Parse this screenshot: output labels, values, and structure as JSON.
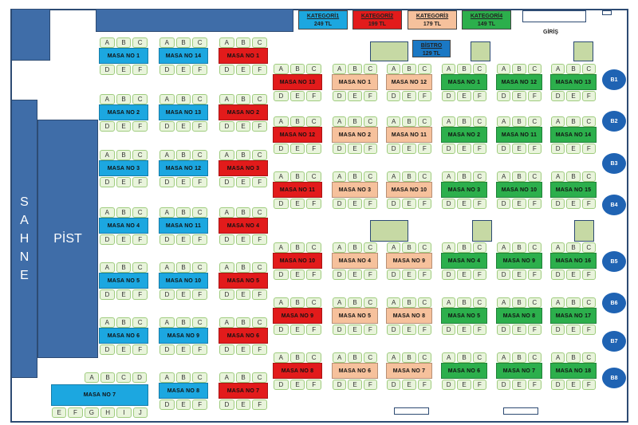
{
  "stage": {
    "letters": [
      "S",
      "A",
      "H",
      "N",
      "E"
    ]
  },
  "dancefloor": {
    "label": "PİST"
  },
  "entrance_label": "GİRİŞ",
  "categories": [
    {
      "id": "k1",
      "name": "KATEGORİ1",
      "price": "249 TL",
      "color": "#1ca7e0"
    },
    {
      "id": "k2",
      "name": "KATEGORİ2",
      "price": "199 TL",
      "color": "#e21b1b"
    },
    {
      "id": "k3",
      "name": "KATEGORİ3",
      "price": "179 TL",
      "color": "#f6c19c"
    },
    {
      "id": "k4",
      "name": "KATEGORİ4",
      "price": "149 TL",
      "color": "#2caf4c"
    }
  ],
  "bistro": {
    "name": "BİSTRO",
    "price": "129 TL"
  },
  "seat_labels": {
    "top": [
      "A",
      "B",
      "C"
    ],
    "bottom": [
      "D",
      "E",
      "F"
    ],
    "top_wide": [
      "A",
      "B",
      "C",
      "D"
    ],
    "bottom_wide": [
      "E",
      "F",
      "G",
      "H",
      "I",
      "J"
    ]
  },
  "table_prefix": "MASA NO",
  "columns": [
    {
      "cat": "k1",
      "tables": [
        "1",
        "2",
        "3",
        "4",
        "5",
        "6"
      ]
    },
    {
      "cat": "k1",
      "tables": [
        "14",
        "13",
        "12",
        "11",
        "10",
        "9",
        "8"
      ]
    },
    {
      "cat": "k2",
      "tables": [
        "1",
        "2",
        "3",
        "4",
        "5",
        "6",
        "7"
      ]
    },
    {
      "cat": "k2",
      "tables": [
        "13",
        "12",
        "11",
        "10",
        "9",
        "8"
      ]
    },
    {
      "cat": "k3",
      "tables": [
        "1",
        "2",
        "3",
        "4",
        "5",
        "6"
      ]
    },
    {
      "cat": "k3",
      "tables": [
        "12",
        "11",
        "10",
        "9",
        "8",
        "7"
      ]
    },
    {
      "cat": "k4",
      "tables": [
        "1",
        "2",
        "3",
        "4",
        "5",
        "6"
      ]
    },
    {
      "cat": "k4",
      "tables": [
        "12",
        "11",
        "10",
        "9",
        "8",
        "7"
      ]
    },
    {
      "cat": "k4",
      "tables": [
        "13",
        "14",
        "15",
        "16",
        "17",
        "18"
      ]
    }
  ],
  "wide_table": {
    "cat": "k1",
    "number": "7"
  },
  "bistro_tables": [
    "B1",
    "B2",
    "B3",
    "B4",
    "B5",
    "B6",
    "B7",
    "B8"
  ]
}
